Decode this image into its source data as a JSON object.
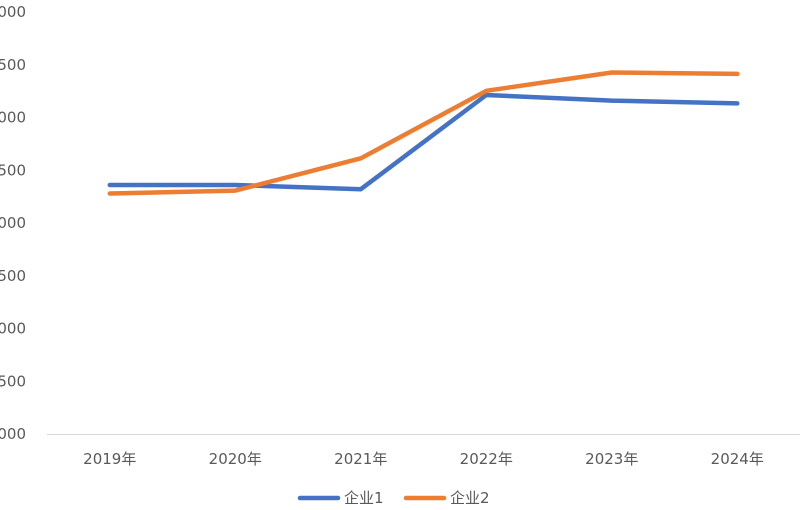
{
  "chart_data": {
    "type": "line",
    "title": "",
    "xlabel": "",
    "ylabel": "",
    "categories": [
      "2019年",
      "2020年",
      "2021年",
      "2022年",
      "2023年",
      "2024年"
    ],
    "y_tick_labels": [
      "000",
      "500",
      "000",
      "500",
      "000",
      "500",
      "000",
      "500",
      "000"
    ],
    "series": [
      {
        "name": "企业1",
        "color": "#4472C4",
        "values": [
          2770,
          2770,
          2740,
          3410,
          3370,
          3350
        ]
      },
      {
        "name": "企业2",
        "color": "#ED7D31",
        "values": [
          2710,
          2730,
          2960,
          3440,
          3570,
          3560
        ]
      }
    ],
    "ylim": [
      1000,
      4000
    ],
    "grid": false,
    "legend_position": "bottom"
  }
}
